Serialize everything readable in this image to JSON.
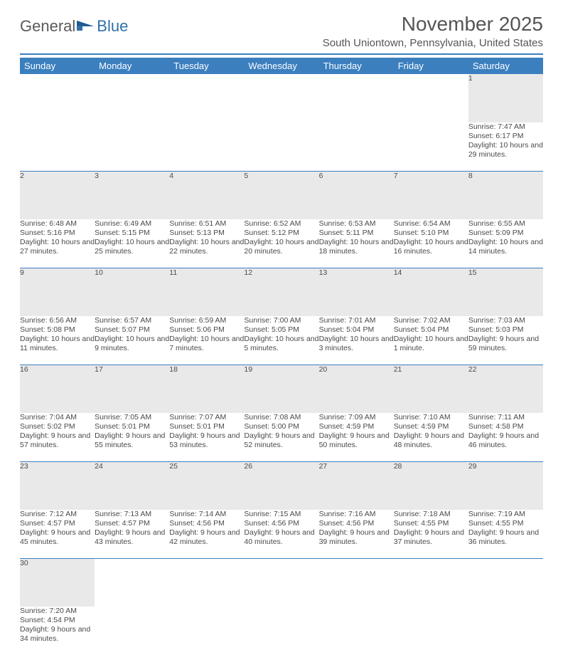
{
  "colors": {
    "accent": "#3b7fbf",
    "header_text": "#ffffff",
    "daynum_bg": "#e9e9e9",
    "body_text": "#4a4a4a",
    "title_text": "#555555"
  },
  "logo": {
    "word1": "General",
    "word2": "Blue"
  },
  "title": "November 2025",
  "location": "South Uniontown, Pennsylvania, United States",
  "day_headers": [
    "Sunday",
    "Monday",
    "Tuesday",
    "Wednesday",
    "Thursday",
    "Friday",
    "Saturday"
  ],
  "weeks": [
    [
      null,
      null,
      null,
      null,
      null,
      null,
      {
        "n": "1",
        "sunrise": "7:47 AM",
        "sunset": "6:17 PM",
        "daylight": "10 hours and 29 minutes."
      }
    ],
    [
      {
        "n": "2",
        "sunrise": "6:48 AM",
        "sunset": "5:16 PM",
        "daylight": "10 hours and 27 minutes."
      },
      {
        "n": "3",
        "sunrise": "6:49 AM",
        "sunset": "5:15 PM",
        "daylight": "10 hours and 25 minutes."
      },
      {
        "n": "4",
        "sunrise": "6:51 AM",
        "sunset": "5:13 PM",
        "daylight": "10 hours and 22 minutes."
      },
      {
        "n": "5",
        "sunrise": "6:52 AM",
        "sunset": "5:12 PM",
        "daylight": "10 hours and 20 minutes."
      },
      {
        "n": "6",
        "sunrise": "6:53 AM",
        "sunset": "5:11 PM",
        "daylight": "10 hours and 18 minutes."
      },
      {
        "n": "7",
        "sunrise": "6:54 AM",
        "sunset": "5:10 PM",
        "daylight": "10 hours and 16 minutes."
      },
      {
        "n": "8",
        "sunrise": "6:55 AM",
        "sunset": "5:09 PM",
        "daylight": "10 hours and 14 minutes."
      }
    ],
    [
      {
        "n": "9",
        "sunrise": "6:56 AM",
        "sunset": "5:08 PM",
        "daylight": "10 hours and 11 minutes."
      },
      {
        "n": "10",
        "sunrise": "6:57 AM",
        "sunset": "5:07 PM",
        "daylight": "10 hours and 9 minutes."
      },
      {
        "n": "11",
        "sunrise": "6:59 AM",
        "sunset": "5:06 PM",
        "daylight": "10 hours and 7 minutes."
      },
      {
        "n": "12",
        "sunrise": "7:00 AM",
        "sunset": "5:05 PM",
        "daylight": "10 hours and 5 minutes."
      },
      {
        "n": "13",
        "sunrise": "7:01 AM",
        "sunset": "5:04 PM",
        "daylight": "10 hours and 3 minutes."
      },
      {
        "n": "14",
        "sunrise": "7:02 AM",
        "sunset": "5:04 PM",
        "daylight": "10 hours and 1 minute."
      },
      {
        "n": "15",
        "sunrise": "7:03 AM",
        "sunset": "5:03 PM",
        "daylight": "9 hours and 59 minutes."
      }
    ],
    [
      {
        "n": "16",
        "sunrise": "7:04 AM",
        "sunset": "5:02 PM",
        "daylight": "9 hours and 57 minutes."
      },
      {
        "n": "17",
        "sunrise": "7:05 AM",
        "sunset": "5:01 PM",
        "daylight": "9 hours and 55 minutes."
      },
      {
        "n": "18",
        "sunrise": "7:07 AM",
        "sunset": "5:01 PM",
        "daylight": "9 hours and 53 minutes."
      },
      {
        "n": "19",
        "sunrise": "7:08 AM",
        "sunset": "5:00 PM",
        "daylight": "9 hours and 52 minutes."
      },
      {
        "n": "20",
        "sunrise": "7:09 AM",
        "sunset": "4:59 PM",
        "daylight": "9 hours and 50 minutes."
      },
      {
        "n": "21",
        "sunrise": "7:10 AM",
        "sunset": "4:59 PM",
        "daylight": "9 hours and 48 minutes."
      },
      {
        "n": "22",
        "sunrise": "7:11 AM",
        "sunset": "4:58 PM",
        "daylight": "9 hours and 46 minutes."
      }
    ],
    [
      {
        "n": "23",
        "sunrise": "7:12 AM",
        "sunset": "4:57 PM",
        "daylight": "9 hours and 45 minutes."
      },
      {
        "n": "24",
        "sunrise": "7:13 AM",
        "sunset": "4:57 PM",
        "daylight": "9 hours and 43 minutes."
      },
      {
        "n": "25",
        "sunrise": "7:14 AM",
        "sunset": "4:56 PM",
        "daylight": "9 hours and 42 minutes."
      },
      {
        "n": "26",
        "sunrise": "7:15 AM",
        "sunset": "4:56 PM",
        "daylight": "9 hours and 40 minutes."
      },
      {
        "n": "27",
        "sunrise": "7:16 AM",
        "sunset": "4:56 PM",
        "daylight": "9 hours and 39 minutes."
      },
      {
        "n": "28",
        "sunrise": "7:18 AM",
        "sunset": "4:55 PM",
        "daylight": "9 hours and 37 minutes."
      },
      {
        "n": "29",
        "sunrise": "7:19 AM",
        "sunset": "4:55 PM",
        "daylight": "9 hours and 36 minutes."
      }
    ],
    [
      {
        "n": "30",
        "sunrise": "7:20 AM",
        "sunset": "4:54 PM",
        "daylight": "9 hours and 34 minutes."
      },
      null,
      null,
      null,
      null,
      null,
      null
    ]
  ],
  "labels": {
    "sunrise": "Sunrise: ",
    "sunset": "Sunset: ",
    "daylight": "Daylight: "
  }
}
